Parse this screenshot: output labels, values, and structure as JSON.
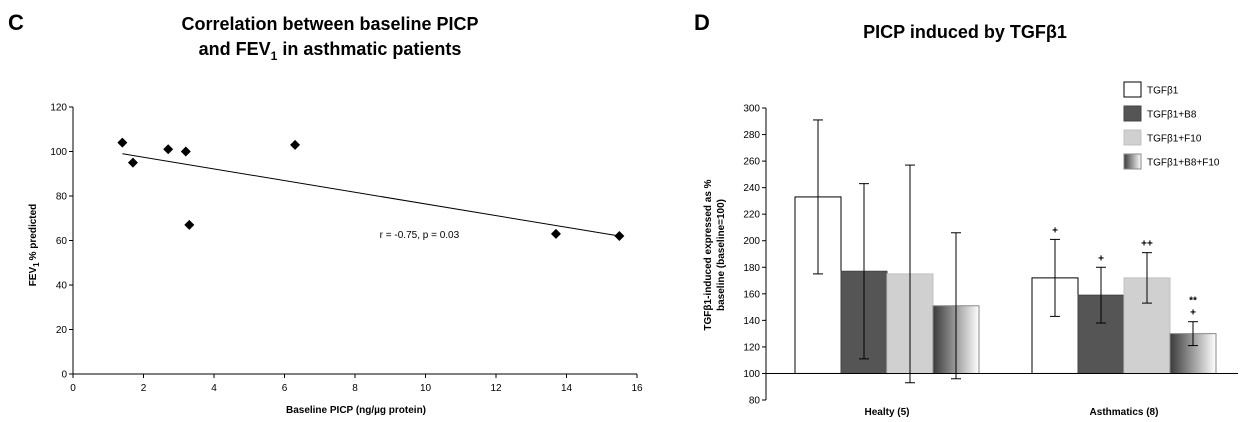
{
  "colors": {
    "TGFb1": "#ffffff",
    "TGFb1_B8": "#555555",
    "TGFb1_F10": "#d0d0d0",
    "TGFb1_B8_F10": "gradient-dark-to-light",
    "marker": "#000000",
    "axis": "#000000"
  },
  "chart_data": [
    {
      "panel": "C",
      "type": "scatter",
      "title_line1": "Correlation between baseline PICP",
      "title_line2_pre": "and FEV",
      "title_line2_sub": "1",
      "title_line2_post": " in asthmatic patients",
      "xlabel": "Baseline PICP (ng/µg protein)",
      "ylabel_pre": "FEV",
      "ylabel_sub": "1",
      "ylabel_post": "% predicted",
      "xlim": [
        0,
        16
      ],
      "ylim": [
        0,
        120
      ],
      "xticks": [
        "0",
        "2",
        "4",
        "6",
        "8",
        "10",
        "12",
        "14",
        "16"
      ],
      "yticks": [
        "0",
        "20",
        "40",
        "60",
        "80",
        "100",
        "120"
      ],
      "points": [
        {
          "x": 1.4,
          "y": 104
        },
        {
          "x": 1.7,
          "y": 95
        },
        {
          "x": 2.7,
          "y": 101
        },
        {
          "x": 3.2,
          "y": 100
        },
        {
          "x": 3.3,
          "y": 67
        },
        {
          "x": 6.3,
          "y": 103
        },
        {
          "x": 13.7,
          "y": 63
        },
        {
          "x": 15.5,
          "y": 62
        }
      ],
      "trendline": {
        "x": [
          1.4,
          15.5
        ],
        "y": [
          99,
          62
        ]
      },
      "annotation": "r = -0.75, p = 0.03",
      "annotation_at": {
        "x": 8.7,
        "y": 63
      },
      "grid": false,
      "legend": "none"
    },
    {
      "panel": "D",
      "type": "bar",
      "title_pre": "PICP induced by TGF",
      "title_greek": "β",
      "title_post": "1",
      "ylabel_line1": "TGFβ1-induced expressed as %",
      "ylabel_line2": "baseline (baseline=100)",
      "categories": [
        "Healty (5)",
        "Asthmatics (8)"
      ],
      "ylim": [
        80,
        300
      ],
      "ybase": 100,
      "yticks": [
        "80",
        "100",
        "120",
        "140",
        "160",
        "180",
        "200",
        "220",
        "240",
        "260",
        "280",
        "300"
      ],
      "series": [
        {
          "name": "TGFβ1",
          "values": [
            233,
            172
          ],
          "errors": [
            58,
            29
          ],
          "color_key": "TGFb1"
        },
        {
          "name": "TGFβ1+B8",
          "values": [
            177,
            159
          ],
          "errors": [
            66,
            21
          ],
          "color_key": "TGFb1_B8"
        },
        {
          "name": "TGFβ1+F10",
          "values": [
            175,
            172
          ],
          "errors": [
            82,
            19
          ],
          "color_key": "TGFb1_F10"
        },
        {
          "name": "TGFβ1+B8+F10",
          "values": [
            151,
            130
          ],
          "errors": [
            55,
            9
          ],
          "color_key": "TGFb1_B8_F10"
        }
      ],
      "significance": [
        {
          "category": 1,
          "series": 0,
          "marks": [
            "+"
          ]
        },
        {
          "category": 1,
          "series": 1,
          "marks": [
            "+"
          ]
        },
        {
          "category": 1,
          "series": 2,
          "marks": [
            "++"
          ]
        },
        {
          "category": 1,
          "series": 3,
          "marks": [
            "**",
            "+"
          ]
        }
      ],
      "grid": false,
      "legend": "top-right"
    }
  ]
}
